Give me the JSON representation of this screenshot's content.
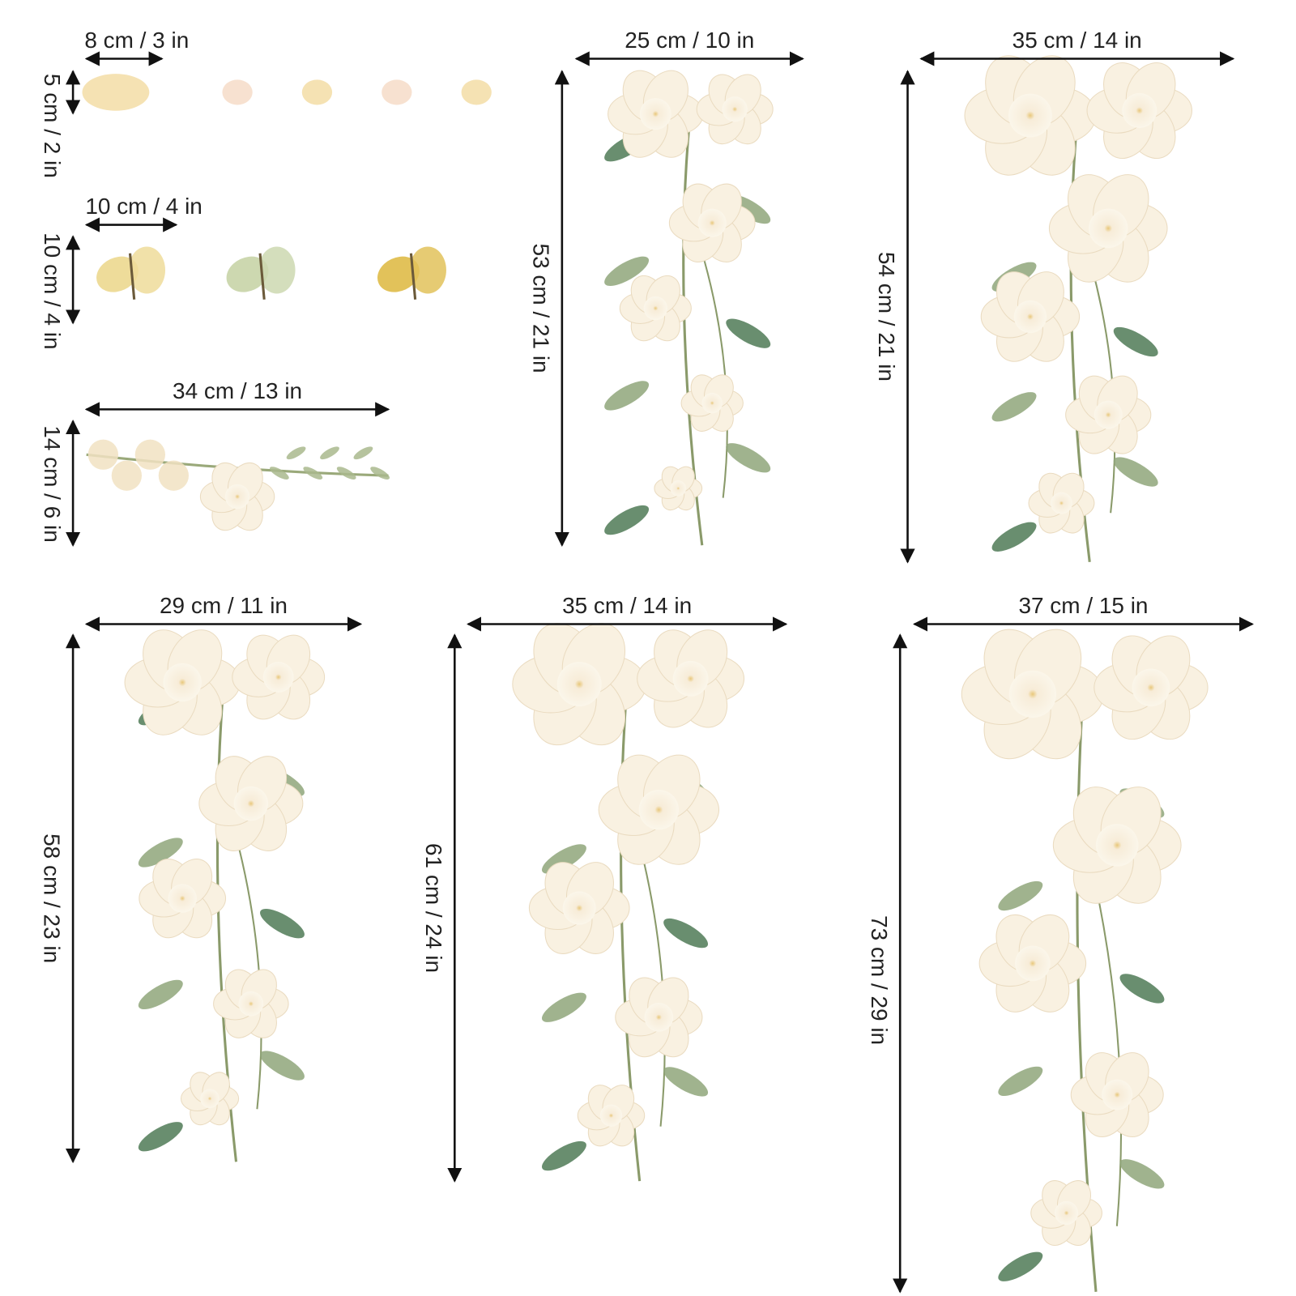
{
  "items": [
    {
      "name": "petals",
      "width_label": "8 cm / 3 in",
      "height_label": "5 cm / 2 in"
    },
    {
      "name": "butterflies",
      "width_label": "10 cm / 4 in",
      "height_label": "10 cm / 4 in"
    },
    {
      "name": "branch",
      "width_label": "34 cm / 13 in",
      "height_label": "14 cm / 6 in"
    },
    {
      "name": "hanging-roses-small",
      "width_label": "25 cm / 10 in",
      "height_label": "53 cm / 21 in"
    },
    {
      "name": "hanging-roses-corner",
      "width_label": "35 cm / 14 in",
      "height_label": "54 cm / 21 in"
    },
    {
      "name": "peony-cascade",
      "width_label": "29 cm / 11 in",
      "height_label": "58 cm / 23 in"
    },
    {
      "name": "camellia-cascade",
      "width_label": "35 cm / 14 in",
      "height_label": "61 cm / 24 in"
    },
    {
      "name": "rose-cascade-large",
      "width_label": "37 cm / 15 in",
      "height_label": "73 cm / 29 in"
    }
  ]
}
